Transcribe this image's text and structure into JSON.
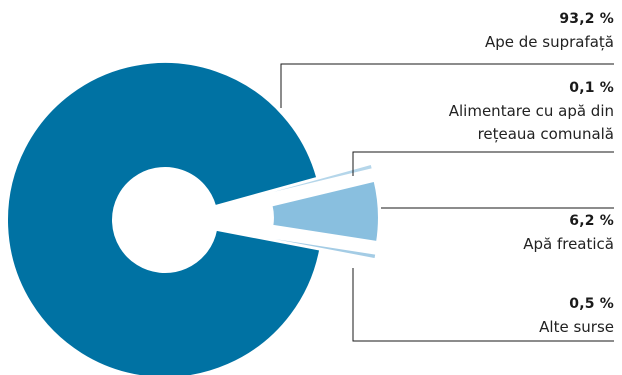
{
  "chart_data": {
    "type": "pie",
    "variant": "donut",
    "slices": [
      {
        "label": "Ape de suprafață",
        "value": 93.2,
        "value_label": "93,2 %",
        "color": "#0072A3"
      },
      {
        "label": "Alimentare cu apă din rețeaua comunală",
        "label_lines": [
          "Alimentare cu apă din",
          "rețeaua comunală"
        ],
        "value": 0.1,
        "value_label": "0,1 %",
        "color": "#B5D6EA"
      },
      {
        "label": "Apă freatică",
        "value": 6.2,
        "value_label": "6,2 %",
        "color": "#89BFDF"
      },
      {
        "label": "Alte surse",
        "value": 0.5,
        "value_label": "0,5 %",
        "color": "#A4CCE5"
      }
    ],
    "exploded": [
      "Alimentare cu apă din rețeaua comunală",
      "Apă freatică",
      "Alte surse"
    ],
    "legend": "right"
  }
}
